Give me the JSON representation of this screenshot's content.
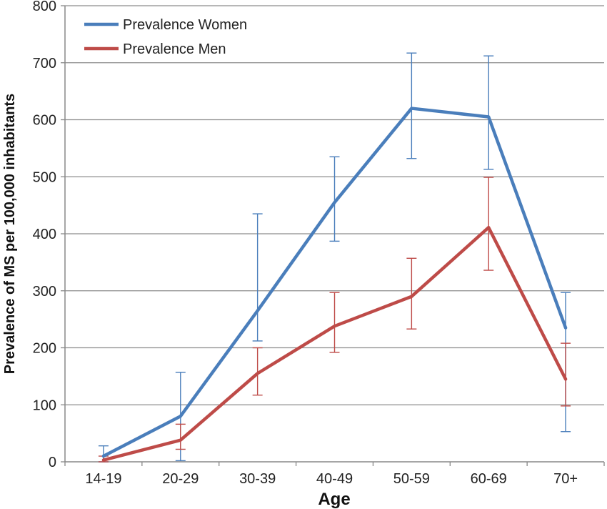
{
  "chart_data": {
    "type": "line",
    "title": "",
    "xlabel": "Age",
    "ylabel": "Prevalence of MS per 100,000 inhabitants",
    "categories": [
      "14-19",
      "20-29",
      "30-39",
      "40-49",
      "50-59",
      "60-69",
      "70+"
    ],
    "ylim": [
      0,
      800
    ],
    "yticks": [
      0,
      100,
      200,
      300,
      400,
      500,
      600,
      700,
      800
    ],
    "grid": true,
    "legend_position": "top-left",
    "series": [
      {
        "name": "Prevalence Women",
        "color": "#4a7ebb",
        "values": [
          10,
          80,
          265,
          455,
          620,
          605,
          235
        ],
        "error_low": [
          0,
          2,
          212,
          387,
          532,
          513,
          53
        ],
        "error_high": [
          28,
          157,
          435,
          535,
          717,
          712,
          297
        ]
      },
      {
        "name": "Prevalence Men",
        "color": "#be4b48",
        "values": [
          3,
          38,
          155,
          238,
          290,
          411,
          145
        ],
        "error_low": [
          0,
          22,
          117,
          192,
          233,
          336,
          98
        ],
        "error_high": [
          10,
          66,
          200,
          297,
          357,
          499,
          208
        ]
      }
    ]
  }
}
